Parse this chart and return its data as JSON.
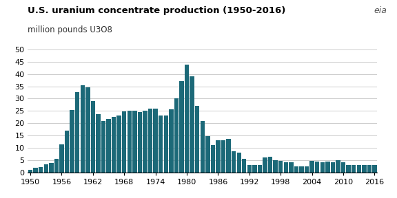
{
  "title": "U.S. uranium concentrate production (1950-2016)",
  "ylabel": "million pounds U3O8",
  "bar_color": "#1c6978",
  "background_color": "#ffffff",
  "grid_color": "#cccccc",
  "ylim": [
    0,
    50
  ],
  "yticks": [
    0,
    5,
    10,
    15,
    20,
    25,
    30,
    35,
    40,
    45,
    50
  ],
  "xtick_years": [
    1950,
    1956,
    1962,
    1968,
    1974,
    1980,
    1986,
    1992,
    1998,
    2004,
    2010,
    2016
  ],
  "years": [
    1950,
    1951,
    1952,
    1953,
    1954,
    1955,
    1956,
    1957,
    1958,
    1959,
    1960,
    1961,
    1962,
    1963,
    1964,
    1965,
    1966,
    1967,
    1968,
    1969,
    1970,
    1971,
    1972,
    1973,
    1974,
    1975,
    1976,
    1977,
    1978,
    1979,
    1980,
    1981,
    1982,
    1983,
    1984,
    1985,
    1986,
    1987,
    1988,
    1989,
    1990,
    1991,
    1992,
    1993,
    1994,
    1995,
    1996,
    1997,
    1998,
    1999,
    2000,
    2001,
    2002,
    2003,
    2004,
    2005,
    2006,
    2007,
    2008,
    2009,
    2010,
    2011,
    2012,
    2013,
    2014,
    2015,
    2016
  ],
  "values": [
    1.0,
    1.8,
    2.1,
    3.3,
    3.7,
    5.6,
    11.3,
    17.0,
    25.3,
    32.5,
    35.5,
    34.5,
    28.9,
    23.8,
    20.8,
    21.8,
    22.5,
    23.0,
    24.8,
    25.0,
    25.0,
    24.5,
    25.0,
    26.0,
    26.0,
    23.0,
    23.0,
    25.5,
    30.0,
    37.0,
    43.7,
    39.0,
    27.0,
    21.0,
    14.7,
    11.0,
    13.0,
    13.0,
    13.5,
    8.5,
    8.0,
    5.5,
    3.0,
    3.0,
    3.0,
    6.0,
    6.2,
    5.0,
    4.7,
    4.1,
    4.0,
    2.3,
    2.3,
    2.3,
    4.5,
    4.4,
    4.1,
    4.3,
    4.1,
    4.8,
    4.2,
    3.0,
    2.9,
    2.9,
    2.9,
    3.0,
    2.9
  ],
  "title_fontsize": 9.5,
  "ylabel_fontsize": 8.5,
  "tick_fontsize": 8
}
